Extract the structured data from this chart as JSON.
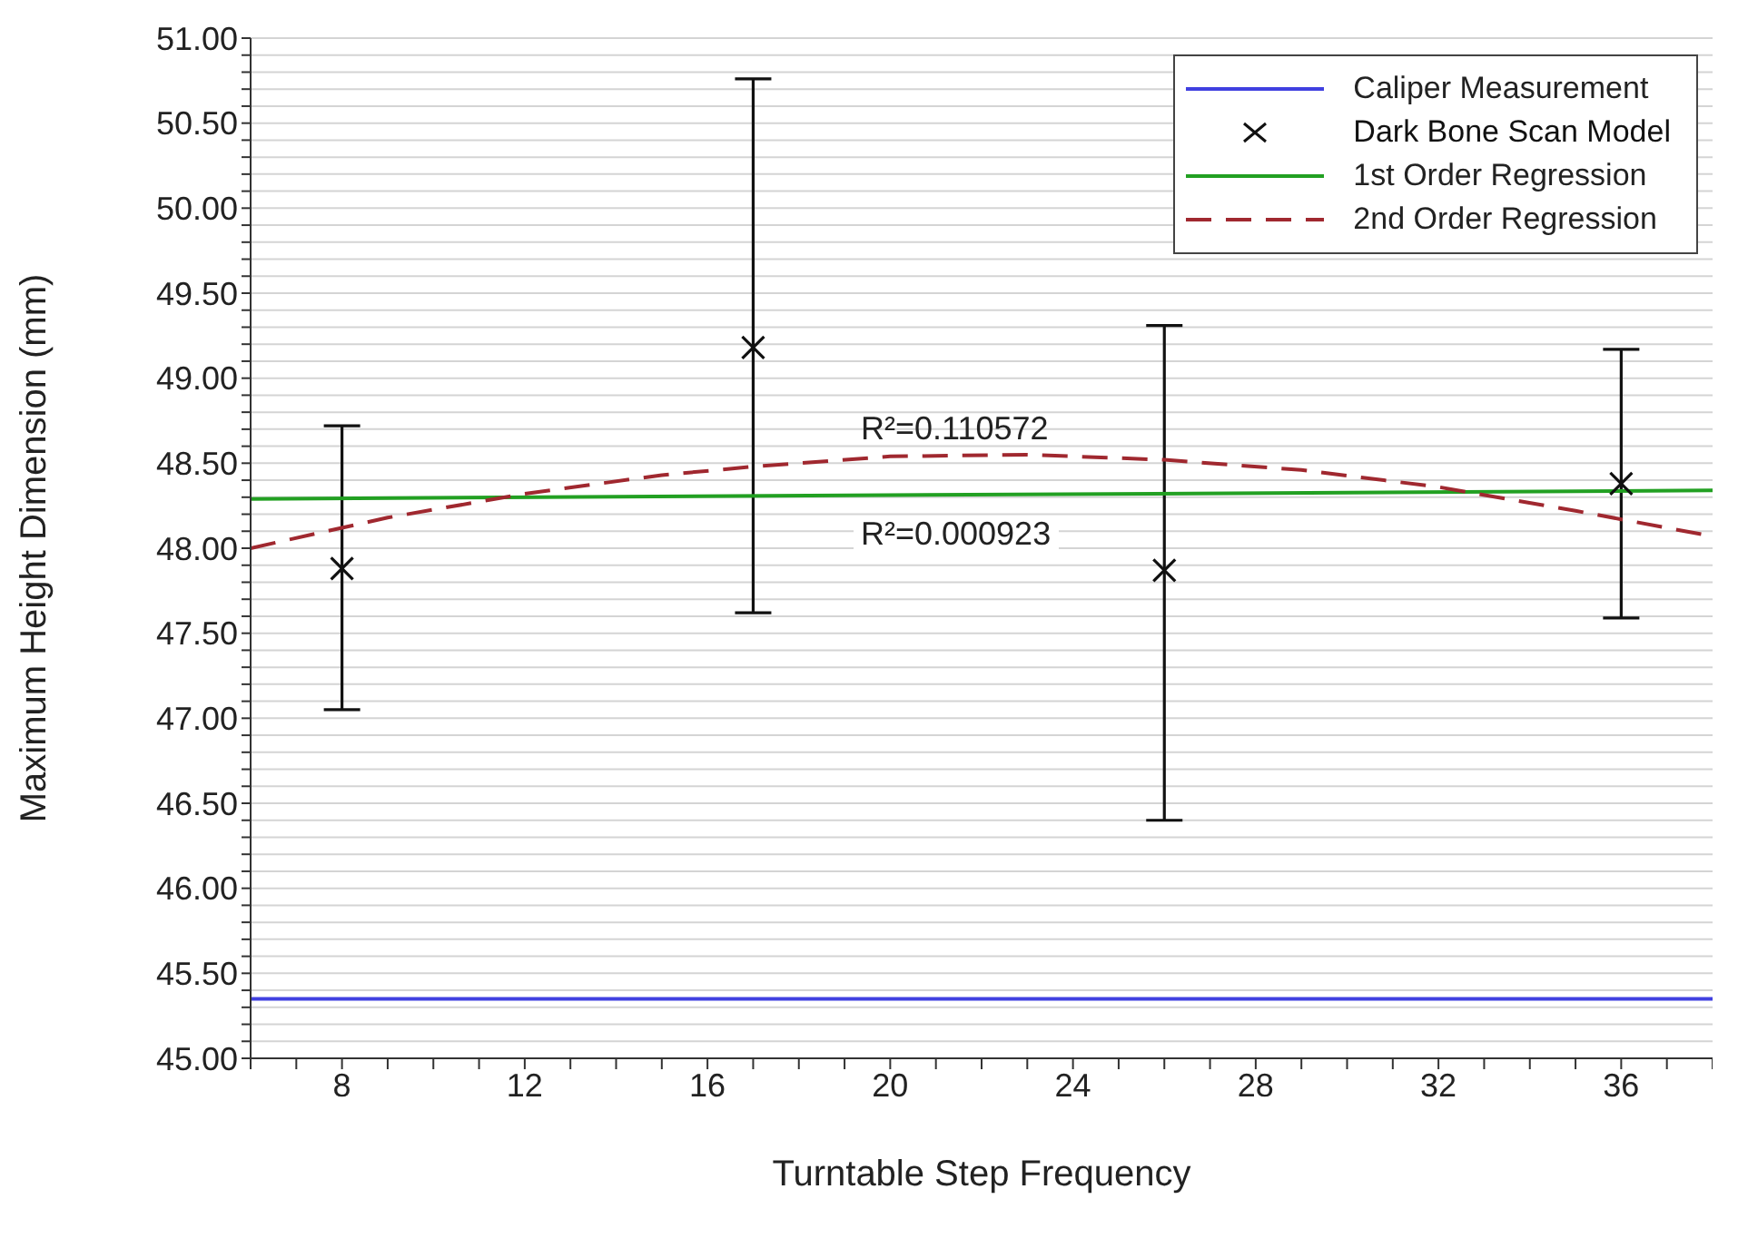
{
  "chart_data": {
    "type": "scatter",
    "xlabel": "Turntable Step Frequency",
    "ylabel": "Maximum Height Dimension (mm)",
    "xlim": [
      6,
      38
    ],
    "xticks": [
      {
        "value": 6,
        "label": null
      },
      {
        "value": 7,
        "label": null
      },
      8,
      {
        "value": 9,
        "label": null
      },
      {
        "value": 10,
        "label": null
      },
      {
        "value": 11,
        "label": null
      },
      12,
      {
        "value": 13,
        "label": null
      },
      {
        "value": 14,
        "label": null
      },
      {
        "value": 15,
        "label": null
      },
      16,
      {
        "value": 17,
        "label": null
      },
      {
        "value": 18,
        "label": null
      },
      {
        "value": 19,
        "label": null
      },
      20,
      {
        "value": 21,
        "label": null
      },
      {
        "value": 22,
        "label": null
      },
      {
        "value": 23,
        "label": null
      },
      24,
      {
        "value": 25,
        "label": null
      },
      {
        "value": 26,
        "label": null
      },
      {
        "value": 27,
        "label": null
      },
      28,
      {
        "value": 29,
        "label": null
      },
      {
        "value": 30,
        "label": null
      },
      {
        "value": 31,
        "label": null
      },
      32,
      {
        "value": 33,
        "label": null
      },
      {
        "value": 34,
        "label": null
      },
      {
        "value": 35,
        "label": null
      },
      36,
      {
        "value": 37,
        "label": null
      },
      {
        "value": 38,
        "label": null
      }
    ],
    "ylim": [
      45,
      51
    ],
    "yticks": [
      {
        "value": 45,
        "label": "45.00"
      },
      {
        "value": 45.1,
        "label": null
      },
      {
        "value": 45.2,
        "label": null
      },
      {
        "value": 45.3,
        "label": null
      },
      {
        "value": 45.4,
        "label": null
      },
      {
        "value": 45.5,
        "label": "45.50"
      },
      {
        "value": 45.6,
        "label": null
      },
      {
        "value": 45.7,
        "label": null
      },
      {
        "value": 45.8,
        "label": null
      },
      {
        "value": 45.9,
        "label": null
      },
      {
        "value": 46,
        "label": "46.00"
      },
      {
        "value": 46.1,
        "label": null
      },
      {
        "value": 46.2,
        "label": null
      },
      {
        "value": 46.3,
        "label": null
      },
      {
        "value": 46.4,
        "label": null
      },
      {
        "value": 46.5,
        "label": "46.50"
      },
      {
        "value": 46.6,
        "label": null
      },
      {
        "value": 46.7,
        "label": null
      },
      {
        "value": 46.8,
        "label": null
      },
      {
        "value": 46.9,
        "label": null
      },
      {
        "value": 47,
        "label": "47.00"
      },
      {
        "value": 47.1,
        "label": null
      },
      {
        "value": 47.2,
        "label": null
      },
      {
        "value": 47.3,
        "label": null
      },
      {
        "value": 47.4,
        "label": null
      },
      {
        "value": 47.5,
        "label": "47.50"
      },
      {
        "value": 47.6,
        "label": null
      },
      {
        "value": 47.7,
        "label": null
      },
      {
        "value": 47.8,
        "label": null
      },
      {
        "value": 47.9,
        "label": null
      },
      {
        "value": 48,
        "label": "48.00"
      },
      {
        "value": 48.1,
        "label": null
      },
      {
        "value": 48.2,
        "label": null
      },
      {
        "value": 48.3,
        "label": null
      },
      {
        "value": 48.4,
        "label": null
      },
      {
        "value": 48.5,
        "label": "48.50"
      },
      {
        "value": 48.6,
        "label": null
      },
      {
        "value": 48.7,
        "label": null
      },
      {
        "value": 48.8,
        "label": null
      },
      {
        "value": 48.9,
        "label": null
      },
      {
        "value": 49,
        "label": "49.00"
      },
      {
        "value": 49.1,
        "label": null
      },
      {
        "value": 49.2,
        "label": null
      },
      {
        "value": 49.3,
        "label": null
      },
      {
        "value": 49.4,
        "label": null
      },
      {
        "value": 49.5,
        "label": "49.50"
      },
      {
        "value": 49.6,
        "label": null
      },
      {
        "value": 49.7,
        "label": null
      },
      {
        "value": 49.8,
        "label": null
      },
      {
        "value": 49.9,
        "label": null
      },
      {
        "value": 50,
        "label": "50.00"
      },
      {
        "value": 50.1,
        "label": null
      },
      {
        "value": 50.2,
        "label": null
      },
      {
        "value": 50.3,
        "label": null
      },
      {
        "value": 50.4,
        "label": null
      },
      {
        "value": 50.5,
        "label": "50.50"
      },
      {
        "value": 50.6,
        "label": null
      },
      {
        "value": 50.7,
        "label": null
      },
      {
        "value": 50.8,
        "label": null
      },
      {
        "value": 50.9,
        "label": null
      },
      {
        "value": 51,
        "label": "51.00"
      }
    ],
    "grid": "y",
    "legend": "top right",
    "series": [
      {
        "name": "Caliper Measurement",
        "type": "line",
        "color": "#4040e0",
        "line_style": "solid",
        "marker": "none",
        "x": [
          6,
          38
        ],
        "values": [
          45.35,
          45.35
        ]
      },
      {
        "name": "Dark Bone Scan Model",
        "color": "#111111",
        "marker": "cross",
        "x": [
          8,
          17,
          26,
          36
        ],
        "values": [
          47.88,
          49.18,
          47.87,
          48.38
        ],
        "errors": [
          [
            47.05,
            48.72
          ],
          [
            47.62,
            50.76
          ],
          [
            46.4,
            49.31
          ],
          [
            47.59,
            49.17
          ]
        ]
      },
      {
        "name": "1st Order Regression",
        "type": "line",
        "color": "#22a022",
        "line_style": "solid",
        "marker": "none",
        "x": [
          6,
          38
        ],
        "values": [
          48.29,
          48.34
        ]
      },
      {
        "name": "2nd Order Regression",
        "type": "line",
        "color": "#a0282f",
        "line_style": "dashed",
        "marker": "none",
        "x": [
          6,
          9,
          12,
          15,
          17,
          20,
          23,
          26,
          29,
          32,
          35,
          38
        ],
        "values": [
          48.0,
          48.18,
          48.32,
          48.43,
          48.48,
          48.54,
          48.55,
          48.52,
          48.46,
          48.36,
          48.22,
          48.07
        ]
      }
    ],
    "annotations": [
      "R²=0.110572",
      "R²=0.000923"
    ]
  }
}
